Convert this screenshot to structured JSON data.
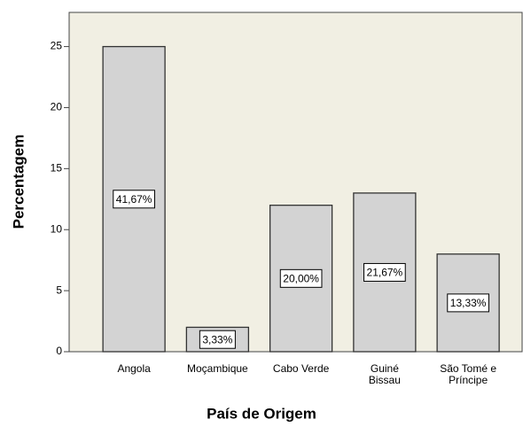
{
  "chart_data": {
    "type": "bar",
    "categories": [
      "Angola",
      "Moçambique",
      "Cabo Verde",
      "Guiné Bissau",
      "São Tomé e Príncipe"
    ],
    "values": [
      25,
      2,
      12,
      13,
      8
    ],
    "bar_labels": [
      "41,67%",
      "3,33%",
      "20,00%",
      "21,67%",
      "13,33%"
    ],
    "color": "#d3d3d3",
    "ylim": [
      0,
      27.8
    ],
    "yticks": [
      0,
      5,
      10,
      15,
      20,
      25
    ],
    "x_label": "País de Origem",
    "y_label": "Percentagem"
  }
}
